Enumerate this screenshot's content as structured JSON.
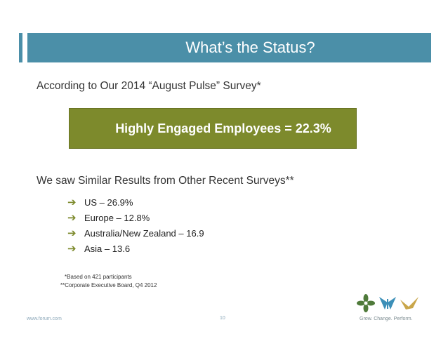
{
  "slide": {
    "title": "What’s the Status?",
    "intro": "According to Our 2014 “August Pulse” Survey*",
    "highlight": "Highly Engaged Employees = 22.3%",
    "subhead": "We saw Similar Results from Other Recent Surveys**",
    "bullet_icon": "right-arrow-icon",
    "bullets": [
      "US – 26.9%",
      "Europe – 12.8%",
      "Australia/New Zealand – 16.9",
      "Asia – 13.6"
    ],
    "footnotes": [
      "*Based on 421 participants",
      "**Corporate Executive Board, Q4 2012"
    ]
  },
  "footer": {
    "url": "www.forum.com",
    "page_number": "10",
    "tagline": "Grow. Change. Perform."
  },
  "colors": {
    "title_bar": "#4b8fa8",
    "highlight_box": "#7d8a2c",
    "arrow": "#7d8a2c",
    "logo_green": "#4f7a3a",
    "logo_blue": "#3c8fb8",
    "logo_gold": "#c9a64a"
  }
}
